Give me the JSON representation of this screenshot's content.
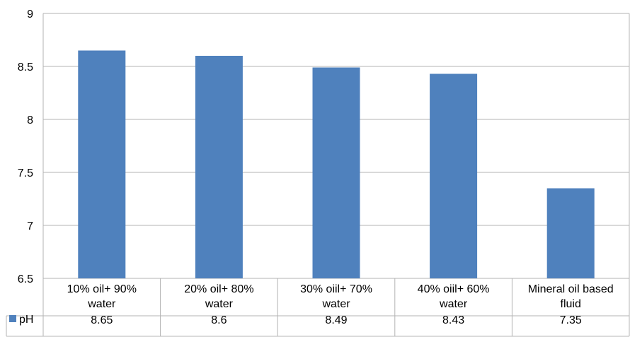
{
  "chart_data": {
    "type": "bar",
    "title": "",
    "xlabel": "",
    "ylabel": "",
    "categories": [
      [
        "10% oil+ 90%",
        "water"
      ],
      [
        "20% oil+ 80%",
        "water"
      ],
      [
        "30% oiil+ 70%",
        "water"
      ],
      [
        "40% oiil+ 60%",
        "water"
      ],
      [
        "Mineral oil based",
        "fluid"
      ]
    ],
    "series": [
      {
        "name": "pH",
        "values": [
          8.65,
          8.6,
          8.49,
          8.43,
          7.35
        ],
        "labels": [
          "8.65",
          "8.6",
          "8.49",
          "8.43",
          "7.35"
        ],
        "color": "#4f81bd"
      }
    ],
    "yticks": [
      "9",
      "8.5",
      "8",
      "7.5",
      "7",
      "6.5"
    ],
    "ylim": [
      6.5,
      9
    ],
    "grid": true,
    "legend": "data-table-left",
    "data_table": true
  }
}
